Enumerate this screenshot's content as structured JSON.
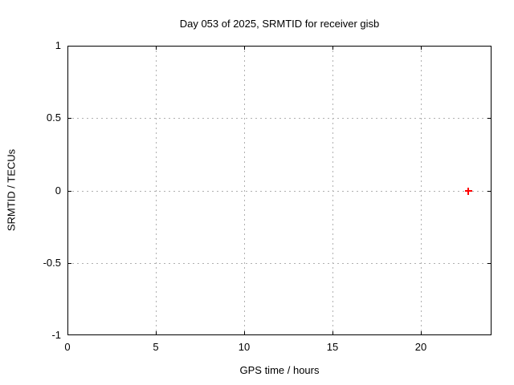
{
  "window": {
    "background": "#ffffff"
  },
  "chart_data": {
    "type": "scatter",
    "title": "Day 053 of 2025, SRMTID for receiver gisb",
    "xlabel": "GPS time / hours",
    "ylabel": "SRMTID / TECUs",
    "xlim": [
      0,
      24
    ],
    "ylim": [
      -1,
      1
    ],
    "x_ticks": [
      0,
      5,
      10,
      15,
      20
    ],
    "x_tick_labels": [
      "0",
      "5",
      "10",
      "15",
      "20"
    ],
    "y_ticks": [
      -1,
      -0.5,
      0,
      0.5,
      1
    ],
    "y_tick_labels": [
      "-1",
      "-0.5",
      "0",
      "0.5",
      "1"
    ],
    "grid": true,
    "legend": "none",
    "series": [
      {
        "name": "SRMTID",
        "marker": "plus",
        "color": "#ff0000",
        "points": [
          {
            "x": 22.7,
            "y": 0.0
          }
        ]
      }
    ]
  },
  "colors": {
    "border": "#000000",
    "grid": "#b0b0b0",
    "text": "#000000",
    "marker": "#ff0000",
    "background": "#ffffff"
  }
}
